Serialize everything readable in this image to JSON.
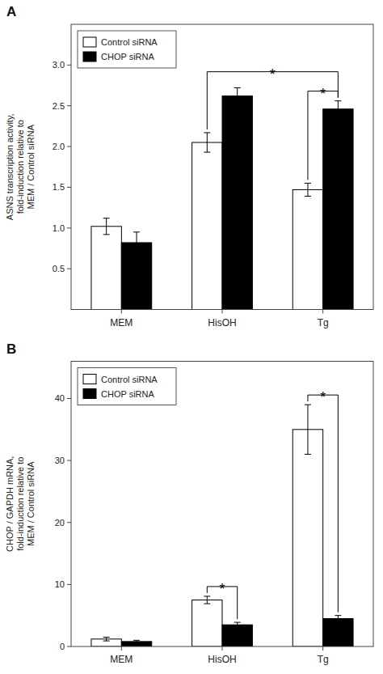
{
  "chart_data": [
    {
      "type": "bar",
      "title": "A",
      "categories": [
        "MEM",
        "HisOH",
        "Tg"
      ],
      "series": [
        {
          "name": "Control siRNA",
          "color": "#ffffff",
          "values": [
            1.02,
            2.05,
            1.47
          ],
          "errors": [
            0.1,
            0.12,
            0.08
          ]
        },
        {
          "name": "CHOP siRNA",
          "color": "#000000",
          "values": [
            0.82,
            2.62,
            2.46
          ],
          "errors": [
            0.13,
            0.1,
            0.1
          ]
        }
      ],
      "ylabel": "ASNS transcription activity,\nfold-induction relative to\nMEM / Control siRNA",
      "ylim": [
        0,
        3.5
      ],
      "yticks": [
        0.5,
        {
          "value": 1.0,
          "label": "1.0"
        },
        1.5,
        {
          "value": 2.0,
          "label": "2.0"
        },
        2.5,
        {
          "value": 3.0,
          "label": "3.0"
        }
      ],
      "annotations": [
        {
          "text": "*",
          "from": {
            "series": 0,
            "category": 2
          },
          "to": {
            "series": 1,
            "category": 2
          }
        },
        {
          "text": "*",
          "from": {
            "series": 0,
            "category": 1
          },
          "to": {
            "series": 1,
            "category": 2
          }
        }
      ],
      "legend": "upper-left",
      "grid": false
    },
    {
      "type": "bar",
      "title": "B",
      "categories": [
        "MEM",
        "HisOH",
        "Tg"
      ],
      "series": [
        {
          "name": "Control siRNA",
          "color": "#ffffff",
          "values": [
            1.2,
            7.5,
            35.0
          ],
          "errors": [
            0.3,
            0.6,
            4.0
          ]
        },
        {
          "name": "CHOP siRNA",
          "color": "#000000",
          "values": [
            0.8,
            3.5,
            4.5
          ],
          "errors": [
            0.2,
            0.4,
            0.5
          ]
        }
      ],
      "ylabel": "CHOP / GAPDH mRNA,\nfold-induction relative to\nMEM / Control siRNA",
      "ylim": [
        0,
        46
      ],
      "yticks": [
        0,
        10,
        20,
        30,
        40
      ],
      "annotations": [
        {
          "text": "*",
          "from": {
            "series": 0,
            "category": 1
          },
          "to": {
            "series": 1,
            "category": 1
          }
        },
        {
          "text": "*",
          "from": {
            "series": 0,
            "category": 2
          },
          "to": {
            "series": 1,
            "category": 2
          }
        }
      ],
      "legend": "upper-left",
      "grid": false
    }
  ]
}
